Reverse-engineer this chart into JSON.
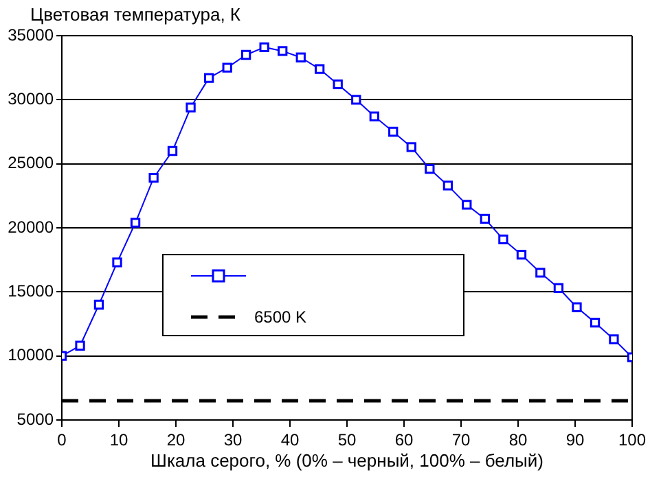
{
  "chart_data": {
    "type": "line",
    "ylabel": "Цветовая температура, К",
    "xlabel": "Шкала серого, % (0% – черный, 100% – белый)",
    "x": [
      0,
      3.2,
      6.5,
      9.7,
      12.9,
      16.1,
      19.4,
      22.6,
      25.8,
      29,
      32.3,
      35.5,
      38.7,
      41.9,
      45.2,
      48.4,
      51.6,
      54.8,
      58.1,
      61.3,
      64.5,
      67.7,
      71,
      74.2,
      77.4,
      80.6,
      83.9,
      87.1,
      90.3,
      93.5,
      96.8,
      100
    ],
    "series": [
      {
        "color": "#0000ff",
        "values": [
          10000,
          10800,
          14000,
          17300,
          20400,
          23900,
          26000,
          29400,
          31700,
          32500,
          33500,
          34100,
          33800,
          33300,
          32400,
          31200,
          30000,
          28700,
          27500,
          26300,
          24600,
          23300,
          21800,
          20700,
          19100,
          17900,
          16500,
          15300,
          13800,
          12600,
          11300,
          9900
        ]
      }
    ],
    "ref_lines": [
      {
        "axis": "y",
        "value": 6500,
        "label": "6500 K",
        "color": "#000000",
        "line_style": "dashed"
      }
    ],
    "xlim": [
      0,
      100
    ],
    "xticks": [
      0,
      10,
      20,
      30,
      40,
      50,
      60,
      70,
      80,
      90,
      100
    ],
    "ylim": [
      5000,
      35000
    ],
    "yticks": [
      5000,
      10000,
      15000,
      20000,
      25000,
      30000,
      35000
    ],
    "grid": "y",
    "marker": "square",
    "line_style": "solid",
    "legend": "center"
  }
}
